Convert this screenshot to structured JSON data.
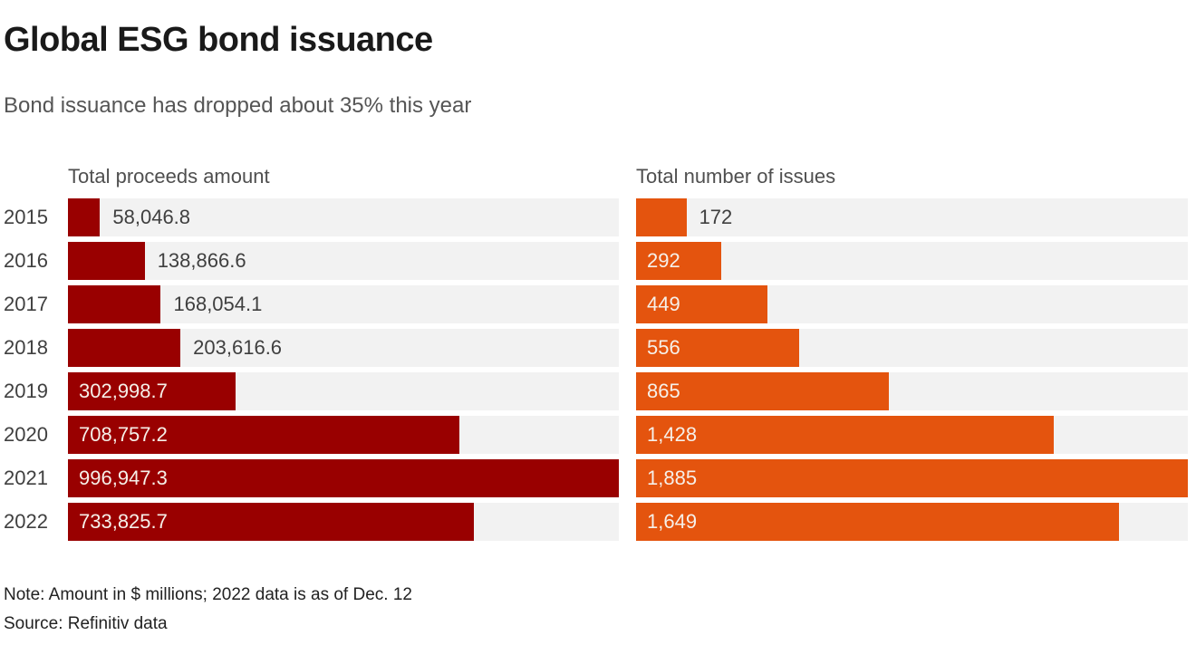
{
  "header": {
    "title": "Global ESG bond issuance",
    "subtitle": "Bond issuance has dropped about 35% this year"
  },
  "footer": {
    "note": "Note: Amount in $ millions; 2022 data is as of Dec. 12",
    "source": "Source: Refinitiv data"
  },
  "colors": {
    "proceeds_bar": "#990000",
    "issues_bar": "#e4540e",
    "bar_track": "#f2f2f2",
    "title_text": "#1a1a1a",
    "subtitle_text": "#555555",
    "inside_label_text": "#f6f0e9",
    "outside_label_text": "#3f3f3f"
  },
  "chart_data": [
    {
      "type": "bar",
      "orientation": "horizontal",
      "title": "Total proceeds amount",
      "unit": "$ millions",
      "categories": [
        "2015",
        "2016",
        "2017",
        "2018",
        "2019",
        "2020",
        "2021",
        "2022"
      ],
      "values": [
        58046.8,
        138866.6,
        168054.1,
        203616.6,
        302998.7,
        708757.2,
        996947.3,
        733825.7
      ],
      "value_labels": [
        "58,046.8",
        "138,866.6",
        "168,054.1",
        "203,616.6",
        "302,998.7",
        "708,757.2",
        "996,947.3",
        "733,825.7"
      ],
      "label_inside": [
        false,
        false,
        false,
        false,
        true,
        true,
        true,
        true
      ],
      "xlim": [
        0,
        996947.3
      ],
      "bar_color": "#990000",
      "grid": false,
      "legend": "none"
    },
    {
      "type": "bar",
      "orientation": "horizontal",
      "title": "Total number of issues",
      "categories": [
        "2015",
        "2016",
        "2017",
        "2018",
        "2019",
        "2020",
        "2021",
        "2022"
      ],
      "values": [
        172,
        292,
        449,
        556,
        865,
        1428,
        1885,
        1649
      ],
      "value_labels": [
        "172",
        "292",
        "449",
        "556",
        "865",
        "1,428",
        "1,885",
        "1,649"
      ],
      "label_inside": [
        false,
        true,
        true,
        true,
        true,
        true,
        true,
        true
      ],
      "xlim": [
        0,
        1885
      ],
      "bar_color": "#e4540e",
      "grid": false,
      "legend": "none"
    }
  ]
}
